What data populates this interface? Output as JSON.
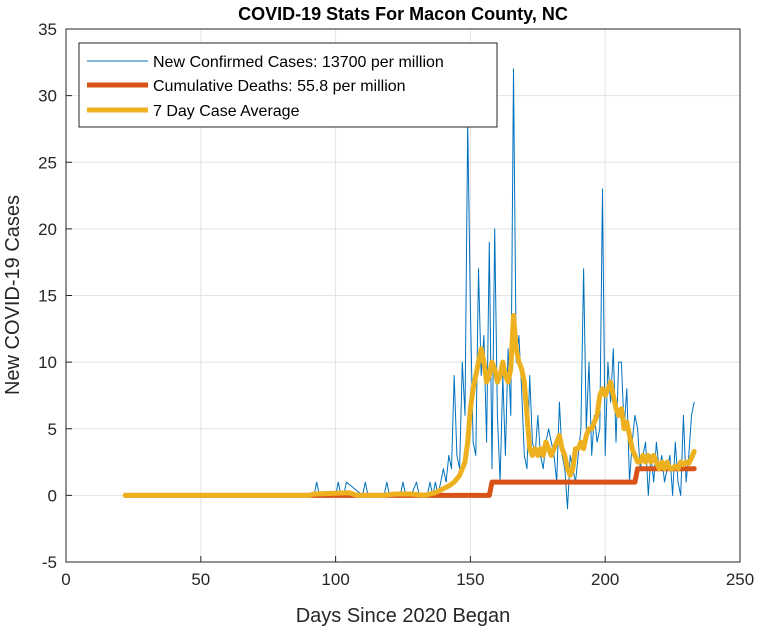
{
  "chart_data": {
    "type": "line",
    "title": "COVID-19 Stats For Macon County, NC",
    "xlabel": "Days Since 2020 Began",
    "ylabel": "New COVID-19 Cases",
    "xlim": [
      0,
      250
    ],
    "ylim": [
      -5,
      35
    ],
    "xticks": [
      0,
      50,
      100,
      150,
      200,
      250
    ],
    "yticks": [
      -5,
      0,
      5,
      10,
      15,
      20,
      25,
      30,
      35
    ],
    "xtick_labels": [
      "0",
      "50",
      "100",
      "150",
      "200",
      "250"
    ],
    "ytick_labels": [
      "-5",
      "0",
      "5",
      "10",
      "15",
      "20",
      "25",
      "30",
      "35"
    ],
    "grid": true,
    "legend_position": "top-left",
    "legend": [
      "New Confirmed Cases: 13700 per million",
      "Cumulative Deaths: 55.8 per million",
      "7 Day Case Average"
    ],
    "series": [
      {
        "name": "New Confirmed Cases: 13700 per million",
        "color": "#0072BD",
        "style": "thin",
        "x": [
          22,
          60,
          90,
          92,
          93,
          94,
          100,
          101,
          102,
          103,
          104,
          110,
          111,
          112,
          118,
          119,
          120,
          124,
          125,
          126,
          128,
          130,
          131,
          134,
          135,
          136,
          137,
          138,
          139,
          140,
          141,
          142,
          143,
          144,
          145,
          146,
          147,
          148,
          149,
          150,
          151,
          152,
          153,
          154,
          155,
          156,
          157,
          158,
          159,
          160,
          161,
          162,
          163,
          164,
          165,
          166,
          167,
          168,
          169,
          170,
          171,
          172,
          173,
          174,
          175,
          176,
          177,
          178,
          179,
          180,
          181,
          182,
          183,
          184,
          185,
          186,
          187,
          188,
          189,
          190,
          191,
          192,
          193,
          194,
          195,
          196,
          197,
          198,
          199,
          200,
          201,
          202,
          203,
          204,
          205,
          206,
          207,
          208,
          209,
          210,
          211,
          212,
          213,
          214,
          215,
          216,
          217,
          218,
          219,
          220,
          221,
          222,
          223,
          224,
          225,
          226,
          227,
          228,
          229,
          230,
          231,
          232,
          233
        ],
        "y": [
          0,
          0,
          0,
          0,
          1,
          0,
          0,
          1,
          0,
          0,
          1,
          0,
          1,
          0,
          0,
          1,
          0,
          0,
          1,
          0,
          0,
          1,
          0,
          0,
          1,
          0,
          1,
          0,
          1,
          2,
          1,
          3,
          2,
          9,
          3,
          2,
          10,
          6,
          28,
          14,
          4,
          3,
          17,
          9,
          12,
          4,
          19,
          2,
          20,
          6,
          1,
          9,
          3,
          11,
          6,
          32,
          10,
          12,
          8,
          3,
          2,
          9,
          4,
          3,
          6,
          3,
          2,
          4,
          5,
          4,
          3,
          1,
          7,
          3,
          2,
          -1,
          3,
          2,
          1,
          3,
          5,
          17,
          5,
          10,
          3,
          6,
          4,
          5,
          23,
          3,
          10,
          7,
          11,
          4,
          10,
          10,
          5,
          8,
          1,
          4,
          6,
          5,
          2,
          3,
          4,
          0,
          3,
          1,
          4,
          2,
          3,
          1,
          2,
          3,
          0,
          4,
          1,
          0,
          6,
          1,
          3,
          6,
          7
        ]
      },
      {
        "name": "Cumulative Deaths: 55.8 per million",
        "color": "#D95319",
        "style": "thick",
        "x": [
          22,
          157,
          158,
          211,
          212,
          233
        ],
        "y": [
          0,
          0,
          1,
          1,
          2,
          2
        ]
      },
      {
        "name": "7 Day Case Average",
        "color": "#EDB120",
        "style": "thick",
        "x": [
          22,
          90,
          92,
          105,
          108,
          118,
          122,
          128,
          133,
          135,
          137,
          140,
          142,
          144,
          146,
          148,
          149,
          150,
          151,
          152,
          153,
          154,
          155,
          156,
          157,
          158,
          159,
          160,
          161,
          162,
          163,
          164,
          165,
          166,
          167,
          168,
          169,
          170,
          171,
          172,
          173,
          174,
          175,
          176,
          177,
          178,
          179,
          180,
          181,
          182,
          183,
          184,
          185,
          186,
          187,
          188,
          189,
          190,
          191,
          192,
          193,
          194,
          195,
          196,
          197,
          198,
          199,
          200,
          201,
          202,
          203,
          204,
          205,
          206,
          207,
          208,
          209,
          210,
          211,
          212,
          213,
          214,
          215,
          216,
          217,
          218,
          219,
          220,
          221,
          222,
          223,
          224,
          225,
          226,
          227,
          228,
          229,
          230,
          231,
          232,
          233
        ],
        "y": [
          0,
          0,
          0.1,
          0.2,
          0,
          0,
          0.1,
          0.1,
          0,
          0.1,
          0.2,
          0.5,
          0.7,
          1,
          1.5,
          2.5,
          4,
          6.5,
          8,
          9,
          10,
          11,
          10,
          8.5,
          9,
          10,
          9.5,
          8.5,
          9,
          10,
          9,
          8.5,
          9.5,
          13.5,
          11,
          10,
          9.5,
          8.5,
          6,
          3.5,
          3,
          3.5,
          3,
          3.5,
          3,
          4,
          3.5,
          3,
          3.5,
          4,
          4.5,
          3.5,
          3,
          2,
          1.5,
          2,
          3.5,
          3.5,
          4,
          3.5,
          4.5,
          5,
          5,
          5.5,
          6,
          7.5,
          8,
          7.5,
          8,
          8.5,
          7.5,
          6.5,
          6,
          6.5,
          5,
          5.5,
          4.5,
          3.5,
          3,
          2.5,
          2.5,
          3,
          2.5,
          3,
          2.5,
          3,
          2.5,
          2,
          2.5,
          2,
          2.5,
          2,
          2,
          2.2,
          2,
          2.5,
          2.3,
          2.5,
          2.4,
          2.8,
          3.3
        ]
      }
    ]
  }
}
